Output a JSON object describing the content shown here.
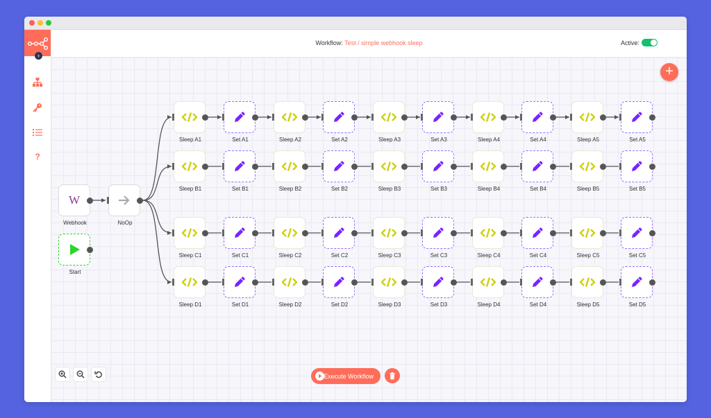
{
  "header": {
    "workflow_label": "Workflow:",
    "workflow_name": "Test / simple webhook sleep",
    "active_label": "Active:",
    "active": true
  },
  "colors": {
    "accent": "#ff6d5a",
    "function_icon": "#cfd010",
    "set_icon": "#7a22ff",
    "toggle_on": "#13c06c",
    "background": "#5563e0"
  },
  "sidebar": {
    "items": [
      {
        "icon": "sitemap-icon"
      },
      {
        "icon": "key-icon"
      },
      {
        "icon": "list-icon"
      },
      {
        "icon": "help-icon"
      }
    ]
  },
  "nodes": {
    "webhook": {
      "label": "Webhook",
      "letter": "W"
    },
    "noop": {
      "label": "NoOp"
    },
    "start": {
      "label": "Start"
    },
    "rows": [
      [
        "Sleep A1",
        "Set A1",
        "Sleep A2",
        "Set A2",
        "Sleep A3",
        "Set A3",
        "Sleep A4",
        "Set A4",
        "Sleep A5",
        "Set A5"
      ],
      [
        "Sleep B1",
        "Set B1",
        "Sleep B2",
        "Set B2",
        "Sleep B3",
        "Set B3",
        "Sleep B4",
        "Set B4",
        "Sleep B5",
        "Set B5"
      ],
      [
        "Sleep C1",
        "Set C1",
        "Sleep C2",
        "Set C2",
        "Sleep C3",
        "Set C3",
        "Sleep C4",
        "Set C4",
        "Sleep C5",
        "Set C5"
      ],
      [
        "Sleep D1",
        "Set D1",
        "Sleep D2",
        "Set D2",
        "Sleep D3",
        "Set D3",
        "Sleep D4",
        "Set D4",
        "Sleep D5",
        "Set D5"
      ]
    ]
  },
  "footer": {
    "execute_label": "Execute Workflow"
  }
}
